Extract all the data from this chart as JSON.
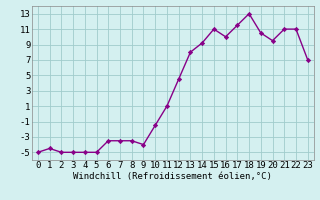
{
  "x": [
    0,
    1,
    2,
    3,
    4,
    5,
    6,
    7,
    8,
    9,
    10,
    11,
    12,
    13,
    14,
    15,
    16,
    17,
    18,
    19,
    20,
    21,
    22,
    23
  ],
  "y": [
    -5,
    -4.5,
    -5,
    -5,
    -5,
    -5,
    -3.5,
    -3.5,
    -3.5,
    -4,
    -1.5,
    1,
    4.5,
    8,
    9.2,
    11,
    10,
    11.5,
    13,
    10.5,
    9.5,
    11,
    11,
    7
  ],
  "line_color": "#880088",
  "marker": "D",
  "marker_size": 2.2,
  "bg_color": "#d4f0f0",
  "grid_color": "#a0cccc",
  "xlabel": "Windchill (Refroidissement éolien,°C)",
  "xlim": [
    -0.5,
    23.5
  ],
  "ylim": [
    -6,
    14
  ],
  "yticks": [
    -5,
    -3,
    -1,
    1,
    3,
    5,
    7,
    9,
    11,
    13
  ],
  "xticks": [
    0,
    1,
    2,
    3,
    4,
    5,
    6,
    7,
    8,
    9,
    10,
    11,
    12,
    13,
    14,
    15,
    16,
    17,
    18,
    19,
    20,
    21,
    22,
    23
  ],
  "xlabel_fontsize": 6.5,
  "tick_fontsize": 6.5,
  "linewidth": 1.0
}
